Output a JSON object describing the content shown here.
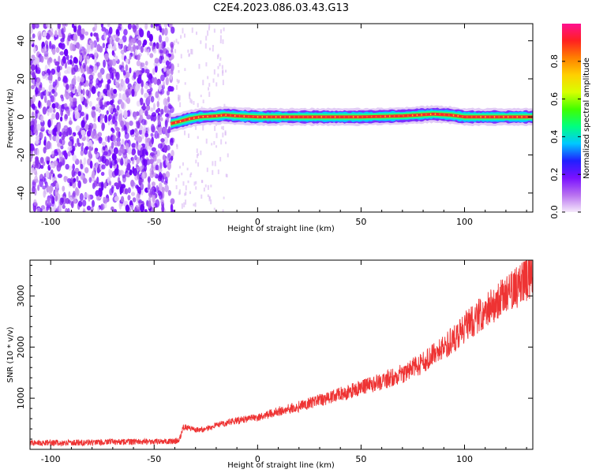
{
  "title": "C2E4.2023.086.03.43.G13",
  "chart_data": [
    {
      "type": "heatmap",
      "xlabel": "Height of straight line (km)",
      "ylabel": "Frequency (Hz)",
      "xlim": [
        -110,
        133
      ],
      "ylim": [
        -50,
        49
      ],
      "xticks": [
        -100,
        -50,
        0,
        50,
        100
      ],
      "yticks": [
        -40,
        -20,
        0,
        20,
        40
      ],
      "colorbar": {
        "label": "Normalized spectral amplitude",
        "range": [
          0.0,
          1.0
        ],
        "ticks": [
          0.0,
          0.2,
          0.4,
          0.6,
          0.8
        ],
        "colors": [
          "#f5e9fb",
          "#b870f0",
          "#7a10ff",
          "#2020ff",
          "#00c8ff",
          "#00ff80",
          "#40ff00",
          "#d8ff00",
          "#ffd000",
          "#ff8000",
          "#ff2020",
          "#ff1090"
        ]
      },
      "noise_region_x": [
        -110,
        -41
      ],
      "signal_start_x": -42,
      "signal_center": [
        [
          -42,
          -3.5
        ],
        [
          -38,
          -2.5
        ],
        [
          -33,
          -1
        ],
        [
          -28,
          0
        ],
        [
          -20,
          0.5
        ],
        [
          -16,
          1
        ],
        [
          -10,
          0.5
        ],
        [
          0,
          0
        ],
        [
          20,
          0
        ],
        [
          50,
          0
        ],
        [
          70,
          0.5
        ],
        [
          85,
          1.5
        ],
        [
          93,
          1
        ],
        [
          100,
          0
        ],
        [
          133,
          0
        ]
      ]
    },
    {
      "type": "line",
      "xlabel": "Height of straight line (km)",
      "ylabel": "SNR (10 * v/v)",
      "xlim": [
        -110,
        133
      ],
      "ylim": [
        0,
        3700
      ],
      "xticks": [
        -100,
        -50,
        0,
        50,
        100
      ],
      "yticks": [
        1000,
        2000,
        3000
      ],
      "color": "#ee3333",
      "series": [
        {
          "x": [
            -110,
            -90,
            -70,
            -50,
            -38,
            -36,
            -30,
            -26,
            -20,
            -10,
            0,
            10,
            20,
            30,
            40,
            50,
            60,
            70,
            80,
            90,
            100,
            110,
            120,
            125,
            130,
            133
          ],
          "y": [
            120,
            130,
            140,
            150,
            160,
            440,
            380,
            380,
            480,
            560,
            620,
            740,
            840,
            960,
            1080,
            1200,
            1330,
            1480,
            1700,
            1980,
            2380,
            2730,
            3000,
            3150,
            3300,
            3450
          ]
        }
      ]
    }
  ]
}
